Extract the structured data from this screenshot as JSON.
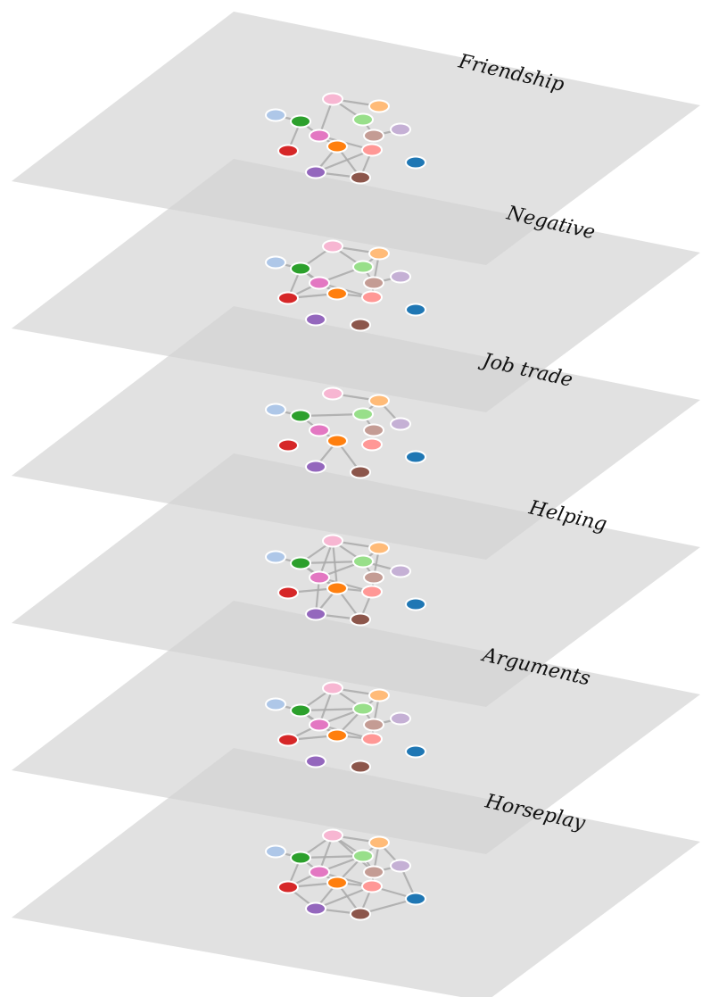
{
  "layers": [
    {
      "label": "Friendship"
    },
    {
      "label": "Negative"
    },
    {
      "label": "Job trade"
    },
    {
      "label": "Helping"
    },
    {
      "label": "Arguments"
    },
    {
      "label": "Horseplay"
    }
  ],
  "nodes": [
    {
      "id": "n1",
      "color": "#f7b6d2"
    },
    {
      "id": "n2",
      "color": "#ffbb78"
    },
    {
      "id": "n3",
      "color": "#aec7e8"
    },
    {
      "id": "n4",
      "color": "#2ca02c"
    },
    {
      "id": "n5",
      "color": "#98df8a"
    },
    {
      "id": "n6",
      "color": "#e377c2"
    },
    {
      "id": "n7",
      "color": "#c49c94"
    },
    {
      "id": "n8",
      "color": "#c5b0d5"
    },
    {
      "id": "n9",
      "color": "#d62728"
    },
    {
      "id": "n10",
      "color": "#ff7f0e"
    },
    {
      "id": "n11",
      "color": "#ff9896"
    },
    {
      "id": "n12",
      "color": "#1f77b4"
    },
    {
      "id": "n13",
      "color": "#9467bd"
    },
    {
      "id": "n14",
      "color": "#8c564b"
    }
  ],
  "edges": [
    [
      [
        "n1",
        "n2"
      ],
      [
        "n1",
        "n6"
      ],
      [
        "n1",
        "n5"
      ],
      [
        "n3",
        "n4"
      ],
      [
        "n4",
        "n6"
      ],
      [
        "n5",
        "n7"
      ],
      [
        "n6",
        "n10"
      ],
      [
        "n10",
        "n13"
      ],
      [
        "n10",
        "n14"
      ],
      [
        "n11",
        "n14"
      ],
      [
        "n11",
        "n13"
      ],
      [
        "n7",
        "n8"
      ],
      [
        "n6",
        "n11"
      ],
      [
        "n13",
        "n14"
      ],
      [
        "n4",
        "n9"
      ]
    ],
    [
      [
        "n1",
        "n2"
      ],
      [
        "n1",
        "n4"
      ],
      [
        "n1",
        "n5"
      ],
      [
        "n3",
        "n4"
      ],
      [
        "n4",
        "n6"
      ],
      [
        "n4",
        "n9"
      ],
      [
        "n5",
        "n2"
      ],
      [
        "n5",
        "n7"
      ],
      [
        "n6",
        "n9"
      ],
      [
        "n6",
        "n10"
      ],
      [
        "n6",
        "n11"
      ],
      [
        "n9",
        "n10"
      ],
      [
        "n10",
        "n11"
      ],
      [
        "n5",
        "n6"
      ],
      [
        "n7",
        "n11"
      ],
      [
        "n7",
        "n8"
      ],
      [
        "n2",
        "n7"
      ],
      [
        "n4",
        "n10"
      ]
    ],
    [
      [
        "n1",
        "n2"
      ],
      [
        "n2",
        "n5"
      ],
      [
        "n2",
        "n8"
      ],
      [
        "n3",
        "n4"
      ],
      [
        "n4",
        "n5"
      ],
      [
        "n6",
        "n10"
      ],
      [
        "n10",
        "n13"
      ],
      [
        "n10",
        "n14"
      ],
      [
        "n4",
        "n6"
      ],
      [
        "n5",
        "n7"
      ]
    ],
    [
      [
        "n1",
        "n2"
      ],
      [
        "n1",
        "n4"
      ],
      [
        "n1",
        "n5"
      ],
      [
        "n1",
        "n6"
      ],
      [
        "n1",
        "n10"
      ],
      [
        "n3",
        "n4"
      ],
      [
        "n4",
        "n5"
      ],
      [
        "n4",
        "n6"
      ],
      [
        "n2",
        "n5"
      ],
      [
        "n2",
        "n7"
      ],
      [
        "n5",
        "n6"
      ],
      [
        "n5",
        "n7"
      ],
      [
        "n5",
        "n8"
      ],
      [
        "n6",
        "n10"
      ],
      [
        "n6",
        "n11"
      ],
      [
        "n10",
        "n11"
      ],
      [
        "n10",
        "n13"
      ],
      [
        "n10",
        "n14"
      ],
      [
        "n11",
        "n14"
      ],
      [
        "n7",
        "n11"
      ],
      [
        "n9",
        "n10"
      ],
      [
        "n13",
        "n14"
      ],
      [
        "n4",
        "n10"
      ],
      [
        "n6",
        "n13"
      ]
    ],
    [
      [
        "n1",
        "n2"
      ],
      [
        "n1",
        "n4"
      ],
      [
        "n1",
        "n5"
      ],
      [
        "n1",
        "n6"
      ],
      [
        "n3",
        "n4"
      ],
      [
        "n4",
        "n5"
      ],
      [
        "n4",
        "n6"
      ],
      [
        "n2",
        "n5"
      ],
      [
        "n2",
        "n7"
      ],
      [
        "n5",
        "n6"
      ],
      [
        "n5",
        "n7"
      ],
      [
        "n5",
        "n10"
      ],
      [
        "n6",
        "n10"
      ],
      [
        "n6",
        "n11"
      ],
      [
        "n9",
        "n10"
      ],
      [
        "n10",
        "n11"
      ],
      [
        "n7",
        "n11"
      ],
      [
        "n7",
        "n8"
      ],
      [
        "n4",
        "n10"
      ],
      [
        "n9",
        "n6"
      ]
    ],
    [
      [
        "n1",
        "n2"
      ],
      [
        "n1",
        "n4"
      ],
      [
        "n1",
        "n5"
      ],
      [
        "n1",
        "n6"
      ],
      [
        "n1",
        "n7"
      ],
      [
        "n3",
        "n4"
      ],
      [
        "n4",
        "n5"
      ],
      [
        "n4",
        "n6"
      ],
      [
        "n4",
        "n9"
      ],
      [
        "n2",
        "n5"
      ],
      [
        "n2",
        "n7"
      ],
      [
        "n2",
        "n8"
      ],
      [
        "n5",
        "n6"
      ],
      [
        "n5",
        "n7"
      ],
      [
        "n5",
        "n10"
      ],
      [
        "n6",
        "n9"
      ],
      [
        "n6",
        "n10"
      ],
      [
        "n6",
        "n11"
      ],
      [
        "n7",
        "n8"
      ],
      [
        "n7",
        "n11"
      ],
      [
        "n8",
        "n12"
      ],
      [
        "n9",
        "n10"
      ],
      [
        "n9",
        "n13"
      ],
      [
        "n10",
        "n11"
      ],
      [
        "n10",
        "n13"
      ],
      [
        "n10",
        "n14"
      ],
      [
        "n11",
        "n12"
      ],
      [
        "n11",
        "n14"
      ],
      [
        "n13",
        "n14"
      ],
      [
        "n11",
        "n13"
      ],
      [
        "n12",
        "n14"
      ]
    ]
  ],
  "colors": {
    "plane_fill": "#d3d3d3",
    "plane_overlap": "#a8a8a8",
    "edge": "#a9a9a9",
    "node_stroke": "#ffffff"
  }
}
